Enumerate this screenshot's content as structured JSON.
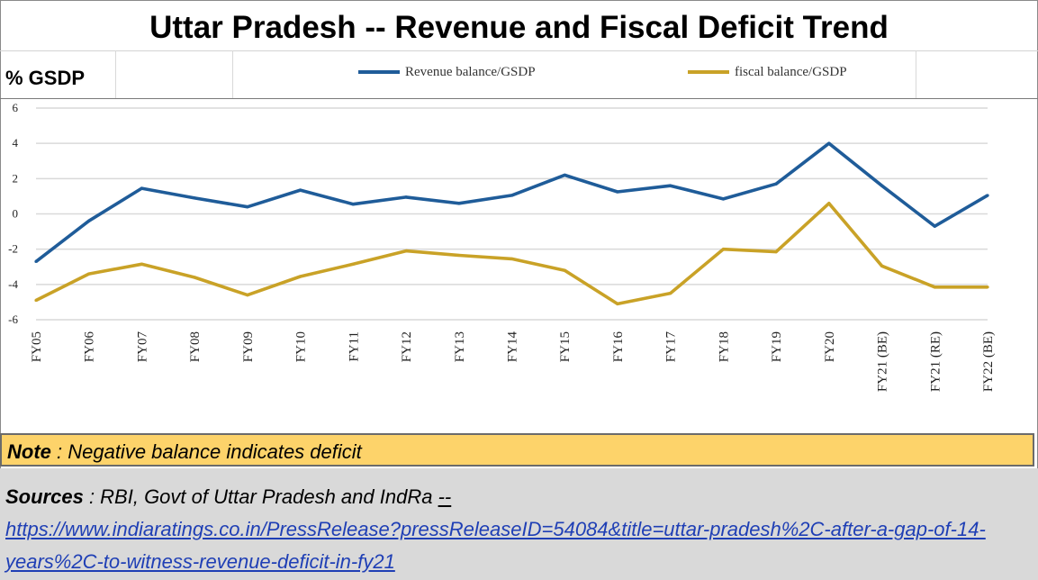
{
  "chart_data": {
    "type": "line",
    "title": "Uttar Pradesh -- Revenue and Fiscal Deficit Trend",
    "ylabel": "% GSDP",
    "xlabel": "",
    "ylim": [
      -6,
      6
    ],
    "yticks": [
      6,
      4,
      2,
      0,
      -2,
      -4,
      -6
    ],
    "grid": true,
    "categories": [
      "FY05",
      "FY06",
      "FY07",
      "FY08",
      "FY09",
      "FY10",
      "FY11",
      "FY12",
      "FY13",
      "FY14",
      "FY15",
      "FY16",
      "FY17",
      "FY18",
      "FY19",
      "FY20",
      "FY21 (BE)",
      "FY21 (RE)",
      "FY22 (BE)"
    ],
    "series": [
      {
        "name": "Revenue balance/GSDP",
        "color": "#1f5c99",
        "values": [
          -2.7,
          -0.4,
          1.45,
          0.9,
          0.4,
          1.35,
          0.55,
          0.95,
          0.6,
          1.05,
          2.2,
          1.25,
          1.6,
          0.85,
          1.7,
          4.0,
          1.6,
          -0.7,
          1.05
        ]
      },
      {
        "name": "fiscal balance/GSDP",
        "color": "#c9a227",
        "values": [
          -4.9,
          -3.4,
          -2.85,
          -3.6,
          -4.6,
          -3.55,
          -2.85,
          -2.1,
          -2.35,
          -2.55,
          -3.2,
          -5.1,
          -4.5,
          -2.0,
          -2.15,
          0.6,
          -2.95,
          -4.15,
          -4.15
        ]
      }
    ]
  },
  "header": {
    "ylabel": "% GSDP"
  },
  "note": {
    "label": "Note",
    "text": " : Negative balance indicates deficit"
  },
  "sources": {
    "label": "Sources",
    "text": " : RBI, Govt of Uttar Pradesh and IndRa ",
    "dashes": "--",
    "url": "https://www.indiaratings.co.in/PressRelease?pressReleaseID=54084&title=uttar-pradesh%2C-after-a-gap-of-14-years%2C-to-witness-revenue-deficit-in-fy21"
  },
  "colors": {
    "note_bg": "#fdd36a",
    "sources_bg": "#d9d9d9",
    "link": "#1f3fb5"
  }
}
